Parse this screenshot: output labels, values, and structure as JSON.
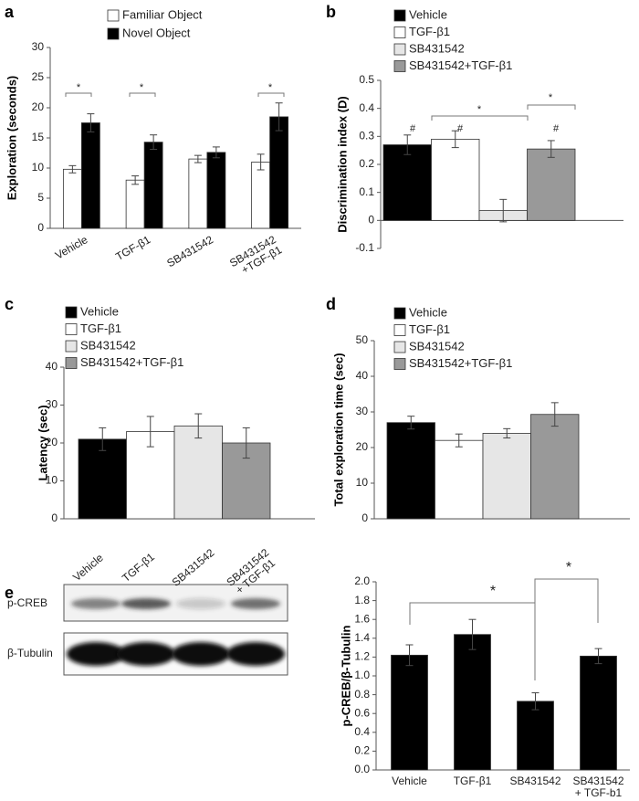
{
  "panel_labels": [
    "a",
    "b",
    "c",
    "d",
    "e"
  ],
  "blot": {
    "lanes": [
      "Vehicle",
      "TGF-β1",
      "SB431542",
      [
        "SB431542",
        "+ TGF-β1"
      ]
    ],
    "rows": [
      "p-CREB",
      "β-Tubulin"
    ]
  },
  "chart_data": [
    {
      "type": "bar",
      "y_label": "Exploration (seconds)",
      "categories": [
        "Vehicle",
        "TGF-β1",
        "SB431542",
        [
          "SB431542",
          "+TGF-β1"
        ]
      ],
      "series": [
        {
          "name": "Familiar Object",
          "color": "#ffffff",
          "values": [
            9.8,
            8.0,
            11.5,
            11.0
          ],
          "errors": [
            0.6,
            0.7,
            0.6,
            1.3
          ]
        },
        {
          "name": "Novel Object",
          "color": "#000000",
          "values": [
            17.5,
            14.3,
            12.6,
            18.5
          ],
          "errors": [
            1.5,
            1.2,
            0.9,
            2.3
          ]
        }
      ],
      "ylim": [
        0,
        30
      ],
      "yticks": [
        0,
        5,
        10,
        15,
        20,
        25,
        30
      ],
      "annotations": [
        "*",
        "*",
        "*"
      ]
    },
    {
      "type": "bar",
      "y_label": "Discrimination index (D)",
      "categories": [
        "Vehicle",
        "TGF-β1",
        "SB431542",
        "SB431542+TGF-β1"
      ],
      "colors": [
        "#000000",
        "#ffffff",
        "#e6e6e6",
        "#999999"
      ],
      "values": [
        0.27,
        0.29,
        0.035,
        0.255
      ],
      "errors": [
        0.035,
        0.03,
        0.04,
        0.03
      ],
      "ylim": [
        -0.1,
        0.5
      ],
      "yticks": [
        -0.1,
        0,
        0.1,
        0.2,
        0.3,
        0.4,
        0.5
      ],
      "annotations": [
        "#",
        "#",
        "#",
        "*",
        "*"
      ]
    },
    {
      "type": "bar",
      "y_label": "Latency (sec)",
      "categories": [
        "Vehicle",
        "TGF-β1",
        "SB431542",
        "SB431542+TGF-β1"
      ],
      "colors": [
        "#000000",
        "#ffffff",
        "#e6e6e6",
        "#999999"
      ],
      "values": [
        21,
        23,
        24.5,
        20
      ],
      "errors": [
        3,
        4,
        3.2,
        4
      ],
      "ylim": [
        0,
        40
      ],
      "yticks": [
        0,
        10,
        20,
        30,
        40
      ],
      "annotations": []
    },
    {
      "type": "bar",
      "y_label": "Total exploration time (sec)",
      "categories": [
        "Vehicle",
        "TGF-β1",
        "SB431542",
        "SB431542+TGF-β1"
      ],
      "colors": [
        "#000000",
        "#ffffff",
        "#e6e6e6",
        "#999999"
      ],
      "values": [
        27,
        22,
        24,
        29.3
      ],
      "errors": [
        1.8,
        1.8,
        1.3,
        3.3
      ],
      "ylim": [
        0,
        50
      ],
      "yticks": [
        0,
        10,
        20,
        30,
        40,
        50
      ],
      "annotations": []
    },
    {
      "type": "bar",
      "y_label": "p-CREB/β-Tubulin",
      "categories": [
        "Vehicle",
        "TGF-β1",
        "SB431542",
        [
          "SB431542",
          "+ TGF-b1"
        ]
      ],
      "colors": [
        "#000000",
        "#000000",
        "#000000",
        "#000000"
      ],
      "values": [
        1.22,
        1.44,
        0.73,
        1.21
      ],
      "errors": [
        0.11,
        0.16,
        0.09,
        0.08
      ],
      "ylim": [
        0,
        2
      ],
      "yticks": [
        {
          "value": 0,
          "label": "0.0"
        },
        0.2,
        0.4,
        0.6,
        0.8,
        {
          "value": 1,
          "label": "1.0"
        },
        1.2,
        1.4,
        1.6,
        1.8,
        {
          "value": 2,
          "label": "2.0"
        }
      ],
      "annotations": [
        "*",
        "*"
      ]
    }
  ]
}
